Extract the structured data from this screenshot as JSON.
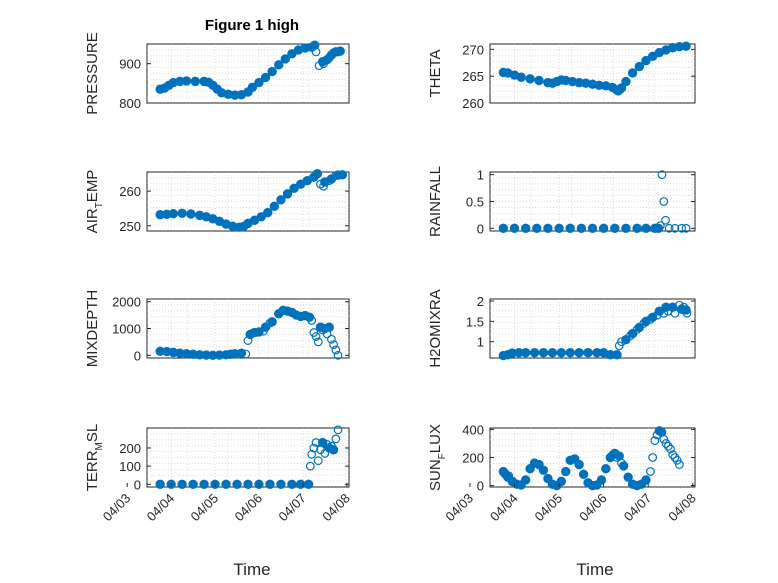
{
  "title": "Figure 1 high",
  "xlabel": "Time",
  "colors": {
    "marker": "#0072BD",
    "axis": "#262626",
    "grid": "#c8c8c8"
  },
  "chart_data": [
    {
      "type": "scatter",
      "ylabel_main": "PRESSURE",
      "ylabel_sub": "",
      "ylabel_tail": "",
      "ylim": [
        800,
        950
      ],
      "yticks": [
        800,
        900
      ],
      "ytick_labels": [
        "800",
        "900"
      ],
      "solid": [
        [
          0.0,
          835
        ],
        [
          0.1,
          838
        ],
        [
          0.2,
          845
        ],
        [
          0.3,
          852
        ],
        [
          0.45,
          855
        ],
        [
          0.6,
          856
        ],
        [
          0.8,
          855
        ],
        [
          1.0,
          855
        ],
        [
          1.1,
          853
        ],
        [
          1.2,
          845
        ],
        [
          1.3,
          835
        ],
        [
          1.4,
          826
        ],
        [
          1.55,
          822
        ],
        [
          1.7,
          820
        ],
        [
          1.85,
          821
        ],
        [
          2.0,
          828
        ],
        [
          2.1,
          840
        ],
        [
          2.25,
          852
        ],
        [
          2.4,
          865
        ],
        [
          2.55,
          880
        ],
        [
          2.7,
          897
        ],
        [
          2.85,
          912
        ],
        [
          3.0,
          925
        ],
        [
          3.15,
          935
        ],
        [
          3.3,
          940
        ],
        [
          3.45,
          942
        ],
        [
          3.52,
          947
        ],
        [
          3.7,
          905
        ],
        [
          3.8,
          910
        ],
        [
          3.9,
          922
        ],
        [
          4.0,
          930
        ],
        [
          4.1,
          932
        ]
      ],
      "hollow": [
        [
          3.55,
          930
        ],
        [
          3.62,
          895
        ],
        [
          3.72,
          900
        ],
        [
          3.85,
          915
        ],
        [
          3.95,
          928
        ],
        [
          4.05,
          930
        ]
      ]
    },
    {
      "type": "scatter",
      "ylabel_main": "THETA",
      "ylabel_sub": "",
      "ylabel_tail": "",
      "ylim": [
        260,
        271
      ],
      "yticks": [
        260,
        265,
        270
      ],
      "ytick_labels": [
        "260",
        "265",
        "270"
      ],
      "solid": [
        [
          0.0,
          265.7
        ],
        [
          0.1,
          265.6
        ],
        [
          0.25,
          265.2
        ],
        [
          0.4,
          264.8
        ],
        [
          0.6,
          264.5
        ],
        [
          0.8,
          264.2
        ],
        [
          1.0,
          263.8
        ],
        [
          1.1,
          263.7
        ],
        [
          1.2,
          264.0
        ],
        [
          1.3,
          264.3
        ],
        [
          1.4,
          264.2
        ],
        [
          1.55,
          264.0
        ],
        [
          1.7,
          263.8
        ],
        [
          1.85,
          263.7
        ],
        [
          2.0,
          263.5
        ],
        [
          2.15,
          263.3
        ],
        [
          2.3,
          263.2
        ],
        [
          2.45,
          262.9
        ],
        [
          2.55,
          262.4
        ],
        [
          2.65,
          262.8
        ],
        [
          2.75,
          264.0
        ],
        [
          2.9,
          265.6
        ],
        [
          3.05,
          266.8
        ],
        [
          3.2,
          267.9
        ],
        [
          3.35,
          268.7
        ],
        [
          3.5,
          269.4
        ],
        [
          3.65,
          269.9
        ],
        [
          3.8,
          270.3
        ],
        [
          3.95,
          270.5
        ],
        [
          4.1,
          270.6
        ]
      ],
      "hollow": [
        [
          2.58,
          262.2
        ],
        [
          2.62,
          262.5
        ]
      ]
    },
    {
      "type": "scatter",
      "ylabel_main": "AIR",
      "ylabel_sub": "T",
      "ylabel_tail": "EMP",
      "ylim": [
        248.5,
        265.5
      ],
      "yticks": [
        250,
        260
      ],
      "ytick_labels": [
        "250",
        "260"
      ],
      "solid": [
        [
          0.0,
          253.2
        ],
        [
          0.15,
          253.3
        ],
        [
          0.3,
          253.5
        ],
        [
          0.5,
          253.6
        ],
        [
          0.7,
          253.4
        ],
        [
          0.9,
          253.0
        ],
        [
          1.05,
          252.6
        ],
        [
          1.2,
          252.0
        ],
        [
          1.35,
          251.3
        ],
        [
          1.5,
          250.5
        ],
        [
          1.65,
          249.9
        ],
        [
          1.8,
          249.6
        ],
        [
          1.9,
          249.8
        ],
        [
          2.0,
          250.7
        ],
        [
          2.15,
          251.6
        ],
        [
          2.3,
          252.6
        ],
        [
          2.45,
          253.8
        ],
        [
          2.6,
          255.6
        ],
        [
          2.75,
          257.5
        ],
        [
          2.9,
          259.2
        ],
        [
          3.05,
          260.8
        ],
        [
          3.2,
          262.0
        ],
        [
          3.35,
          263.0
        ],
        [
          3.5,
          264.0
        ],
        [
          3.58,
          265.0
        ],
        [
          3.75,
          262.6
        ],
        [
          3.9,
          263.5
        ],
        [
          4.05,
          264.6
        ],
        [
          4.15,
          264.7
        ]
      ],
      "hollow": [
        [
          3.65,
          262.0
        ],
        [
          3.72,
          261.4
        ],
        [
          3.85,
          263.0
        ],
        [
          4.0,
          264.5
        ]
      ]
    },
    {
      "type": "scatter",
      "ylabel_main": "RAINFALL",
      "ylabel_sub": "",
      "ylabel_tail": "",
      "ylim": [
        -0.05,
        1.05
      ],
      "yticks": [
        0,
        0.5,
        1
      ],
      "ytick_labels": [
        "0",
        "0.5",
        "1"
      ],
      "solid": [
        [
          0.0,
          0
        ],
        [
          0.25,
          0
        ],
        [
          0.5,
          0
        ],
        [
          0.75,
          0
        ],
        [
          1.0,
          0
        ],
        [
          1.25,
          0
        ],
        [
          1.5,
          0
        ],
        [
          1.75,
          0
        ],
        [
          2.0,
          0
        ],
        [
          2.25,
          0
        ],
        [
          2.5,
          0
        ],
        [
          2.75,
          0
        ],
        [
          3.0,
          0
        ],
        [
          3.2,
          0
        ],
        [
          3.4,
          0
        ],
        [
          3.48,
          0
        ]
      ],
      "hollow": [
        [
          3.52,
          0.05
        ],
        [
          3.56,
          1.0
        ],
        [
          3.6,
          0.5
        ],
        [
          3.64,
          0.15
        ],
        [
          3.72,
          0
        ],
        [
          3.85,
          0
        ],
        [
          4.0,
          0
        ],
        [
          4.1,
          0
        ]
      ]
    },
    {
      "type": "scatter",
      "ylabel_main": "MIXDEPTH",
      "ylabel_sub": "",
      "ylabel_tail": "",
      "ylim": [
        -100,
        2100
      ],
      "yticks": [
        0,
        1000,
        2000
      ],
      "ytick_labels": [
        "0",
        "1000",
        "2000"
      ],
      "solid": [
        [
          0.0,
          150
        ],
        [
          0.15,
          140
        ],
        [
          0.3,
          110
        ],
        [
          0.45,
          80
        ],
        [
          0.6,
          60
        ],
        [
          0.75,
          40
        ],
        [
          0.9,
          20
        ],
        [
          1.05,
          10
        ],
        [
          1.2,
          0
        ],
        [
          1.35,
          10
        ],
        [
          1.5,
          20
        ],
        [
          1.6,
          40
        ],
        [
          1.7,
          60
        ],
        [
          1.85,
          80
        ],
        [
          2.05,
          780
        ],
        [
          2.15,
          850
        ],
        [
          2.25,
          870
        ],
        [
          2.4,
          1050
        ],
        [
          2.55,
          1250
        ],
        [
          2.7,
          1550
        ],
        [
          2.8,
          1680
        ],
        [
          2.9,
          1650
        ],
        [
          3.0,
          1600
        ],
        [
          3.1,
          1500
        ],
        [
          3.2,
          1450
        ],
        [
          3.3,
          1480
        ],
        [
          3.4,
          1420
        ],
        [
          3.65,
          1050
        ],
        [
          3.75,
          1000
        ],
        [
          3.85,
          1050
        ]
      ],
      "hollow": [
        [
          1.95,
          50
        ],
        [
          2.0,
          550
        ],
        [
          2.1,
          820
        ],
        [
          2.35,
          900
        ],
        [
          2.5,
          1200
        ],
        [
          3.45,
          1300
        ],
        [
          3.5,
          850
        ],
        [
          3.55,
          700
        ],
        [
          3.6,
          500
        ],
        [
          3.7,
          950
        ],
        [
          3.8,
          800
        ],
        [
          3.9,
          600
        ],
        [
          3.95,
          400
        ],
        [
          4.0,
          200
        ],
        [
          4.05,
          0
        ]
      ]
    },
    {
      "type": "scatter",
      "ylabel_main": "H2OMIXRA",
      "ylabel_sub": "",
      "ylabel_tail": "",
      "ylim": [
        0.6,
        2.05
      ],
      "yticks": [
        1,
        1.5,
        2
      ],
      "ytick_labels": [
        "1",
        "1.5",
        "2"
      ],
      "solid": [
        [
          0.0,
          0.66
        ],
        [
          0.1,
          0.68
        ],
        [
          0.2,
          0.72
        ],
        [
          0.35,
          0.73
        ],
        [
          0.5,
          0.73
        ],
        [
          0.7,
          0.73
        ],
        [
          0.9,
          0.73
        ],
        [
          1.1,
          0.73
        ],
        [
          1.3,
          0.73
        ],
        [
          1.5,
          0.73
        ],
        [
          1.7,
          0.73
        ],
        [
          1.9,
          0.73
        ],
        [
          2.1,
          0.73
        ],
        [
          2.25,
          0.73
        ],
        [
          2.4,
          0.68
        ],
        [
          2.55,
          0.68
        ],
        [
          2.75,
          1.05
        ],
        [
          2.9,
          1.2
        ],
        [
          3.05,
          1.35
        ],
        [
          3.2,
          1.5
        ],
        [
          3.35,
          1.6
        ],
        [
          3.5,
          1.75
        ],
        [
          3.65,
          1.85
        ],
        [
          3.8,
          1.85
        ],
        [
          4.0,
          1.8
        ],
        [
          4.1,
          1.78
        ]
      ],
      "hollow": [
        [
          2.6,
          0.9
        ],
        [
          2.65,
          1.0
        ],
        [
          2.85,
          1.15
        ],
        [
          3.0,
          1.3
        ],
        [
          3.15,
          1.45
        ],
        [
          3.3,
          1.55
        ],
        [
          3.45,
          1.65
        ],
        [
          3.6,
          1.7
        ],
        [
          3.7,
          1.75
        ],
        [
          3.85,
          1.7
        ],
        [
          3.95,
          1.9
        ],
        [
          4.05,
          1.85
        ],
        [
          4.12,
          1.7
        ]
      ]
    },
    {
      "type": "scatter",
      "ylabel_main": "TERR",
      "ylabel_sub": "M",
      "ylabel_tail": "SL",
      "ylim": [
        -15,
        310
      ],
      "yticks": [
        0,
        100,
        200
      ],
      "ytick_labels": [
        "0",
        "100",
        "200"
      ],
      "solid": [
        [
          0.0,
          0
        ],
        [
          0.25,
          0
        ],
        [
          0.5,
          0
        ],
        [
          0.75,
          0
        ],
        [
          1.0,
          0
        ],
        [
          1.25,
          0
        ],
        [
          1.5,
          0
        ],
        [
          1.75,
          0
        ],
        [
          2.0,
          0
        ],
        [
          2.25,
          0
        ],
        [
          2.5,
          0
        ],
        [
          2.75,
          0
        ],
        [
          3.0,
          0
        ],
        [
          3.2,
          0
        ],
        [
          3.38,
          0
        ],
        [
          3.7,
          230
        ],
        [
          3.85,
          200
        ],
        [
          3.95,
          190
        ]
      ],
      "hollow": [
        [
          3.42,
          100
        ],
        [
          3.45,
          165
        ],
        [
          3.5,
          200
        ],
        [
          3.55,
          230
        ],
        [
          3.6,
          130
        ],
        [
          3.65,
          190
        ],
        [
          3.75,
          170
        ],
        [
          3.8,
          220
        ],
        [
          3.9,
          210
        ],
        [
          4.0,
          250
        ],
        [
          4.05,
          300
        ]
      ]
    },
    {
      "type": "scatter",
      "ylabel_main": "SUN",
      "ylabel_sub": "F",
      "ylabel_tail": "LUX",
      "ylim": [
        -10,
        410
      ],
      "yticks": [
        0,
        200,
        400
      ],
      "ytick_labels": [
        "0",
        "200",
        "400"
      ],
      "solid": [
        [
          0.0,
          100
        ],
        [
          0.05,
          80
        ],
        [
          0.1,
          60
        ],
        [
          0.2,
          30
        ],
        [
          0.3,
          10
        ],
        [
          0.4,
          5
        ],
        [
          0.5,
          40
        ],
        [
          0.6,
          120
        ],
        [
          0.7,
          160
        ],
        [
          0.8,
          150
        ],
        [
          0.9,
          110
        ],
        [
          1.0,
          50
        ],
        [
          1.1,
          10
        ],
        [
          1.2,
          0
        ],
        [
          1.3,
          30
        ],
        [
          1.4,
          100
        ],
        [
          1.5,
          180
        ],
        [
          1.6,
          190
        ],
        [
          1.7,
          150
        ],
        [
          1.8,
          80
        ],
        [
          1.9,
          20
        ],
        [
          2.0,
          0
        ],
        [
          2.1,
          5
        ],
        [
          2.2,
          40
        ],
        [
          2.3,
          120
        ],
        [
          2.4,
          200
        ],
        [
          2.5,
          230
        ],
        [
          2.6,
          210
        ],
        [
          2.7,
          140
        ],
        [
          2.8,
          60
        ],
        [
          2.9,
          10
        ],
        [
          3.0,
          0
        ],
        [
          3.1,
          10
        ],
        [
          3.2,
          40
        ],
        [
          3.5,
          390
        ],
        [
          3.55,
          380
        ]
      ],
      "hollow": [
        [
          0.02,
          90
        ],
        [
          0.12,
          70
        ],
        [
          2.45,
          220
        ],
        [
          2.55,
          200
        ],
        [
          2.65,
          160
        ],
        [
          3.3,
          100
        ],
        [
          3.35,
          200
        ],
        [
          3.4,
          320
        ],
        [
          3.45,
          360
        ],
        [
          3.6,
          330
        ],
        [
          3.65,
          300
        ],
        [
          3.7,
          280
        ],
        [
          3.75,
          260
        ],
        [
          3.8,
          220
        ],
        [
          3.85,
          200
        ],
        [
          3.9,
          180
        ],
        [
          3.95,
          150
        ]
      ]
    }
  ],
  "x_axis": {
    "xlim": [
      -0.3,
      4.3
    ],
    "ticks": [
      -0.75,
      0.25,
      1.25,
      2.25,
      3.25,
      4.25
    ],
    "tick_labels": [
      "04/03",
      "04/04",
      "04/05",
      "04/06",
      "04/07",
      "04/08"
    ]
  }
}
